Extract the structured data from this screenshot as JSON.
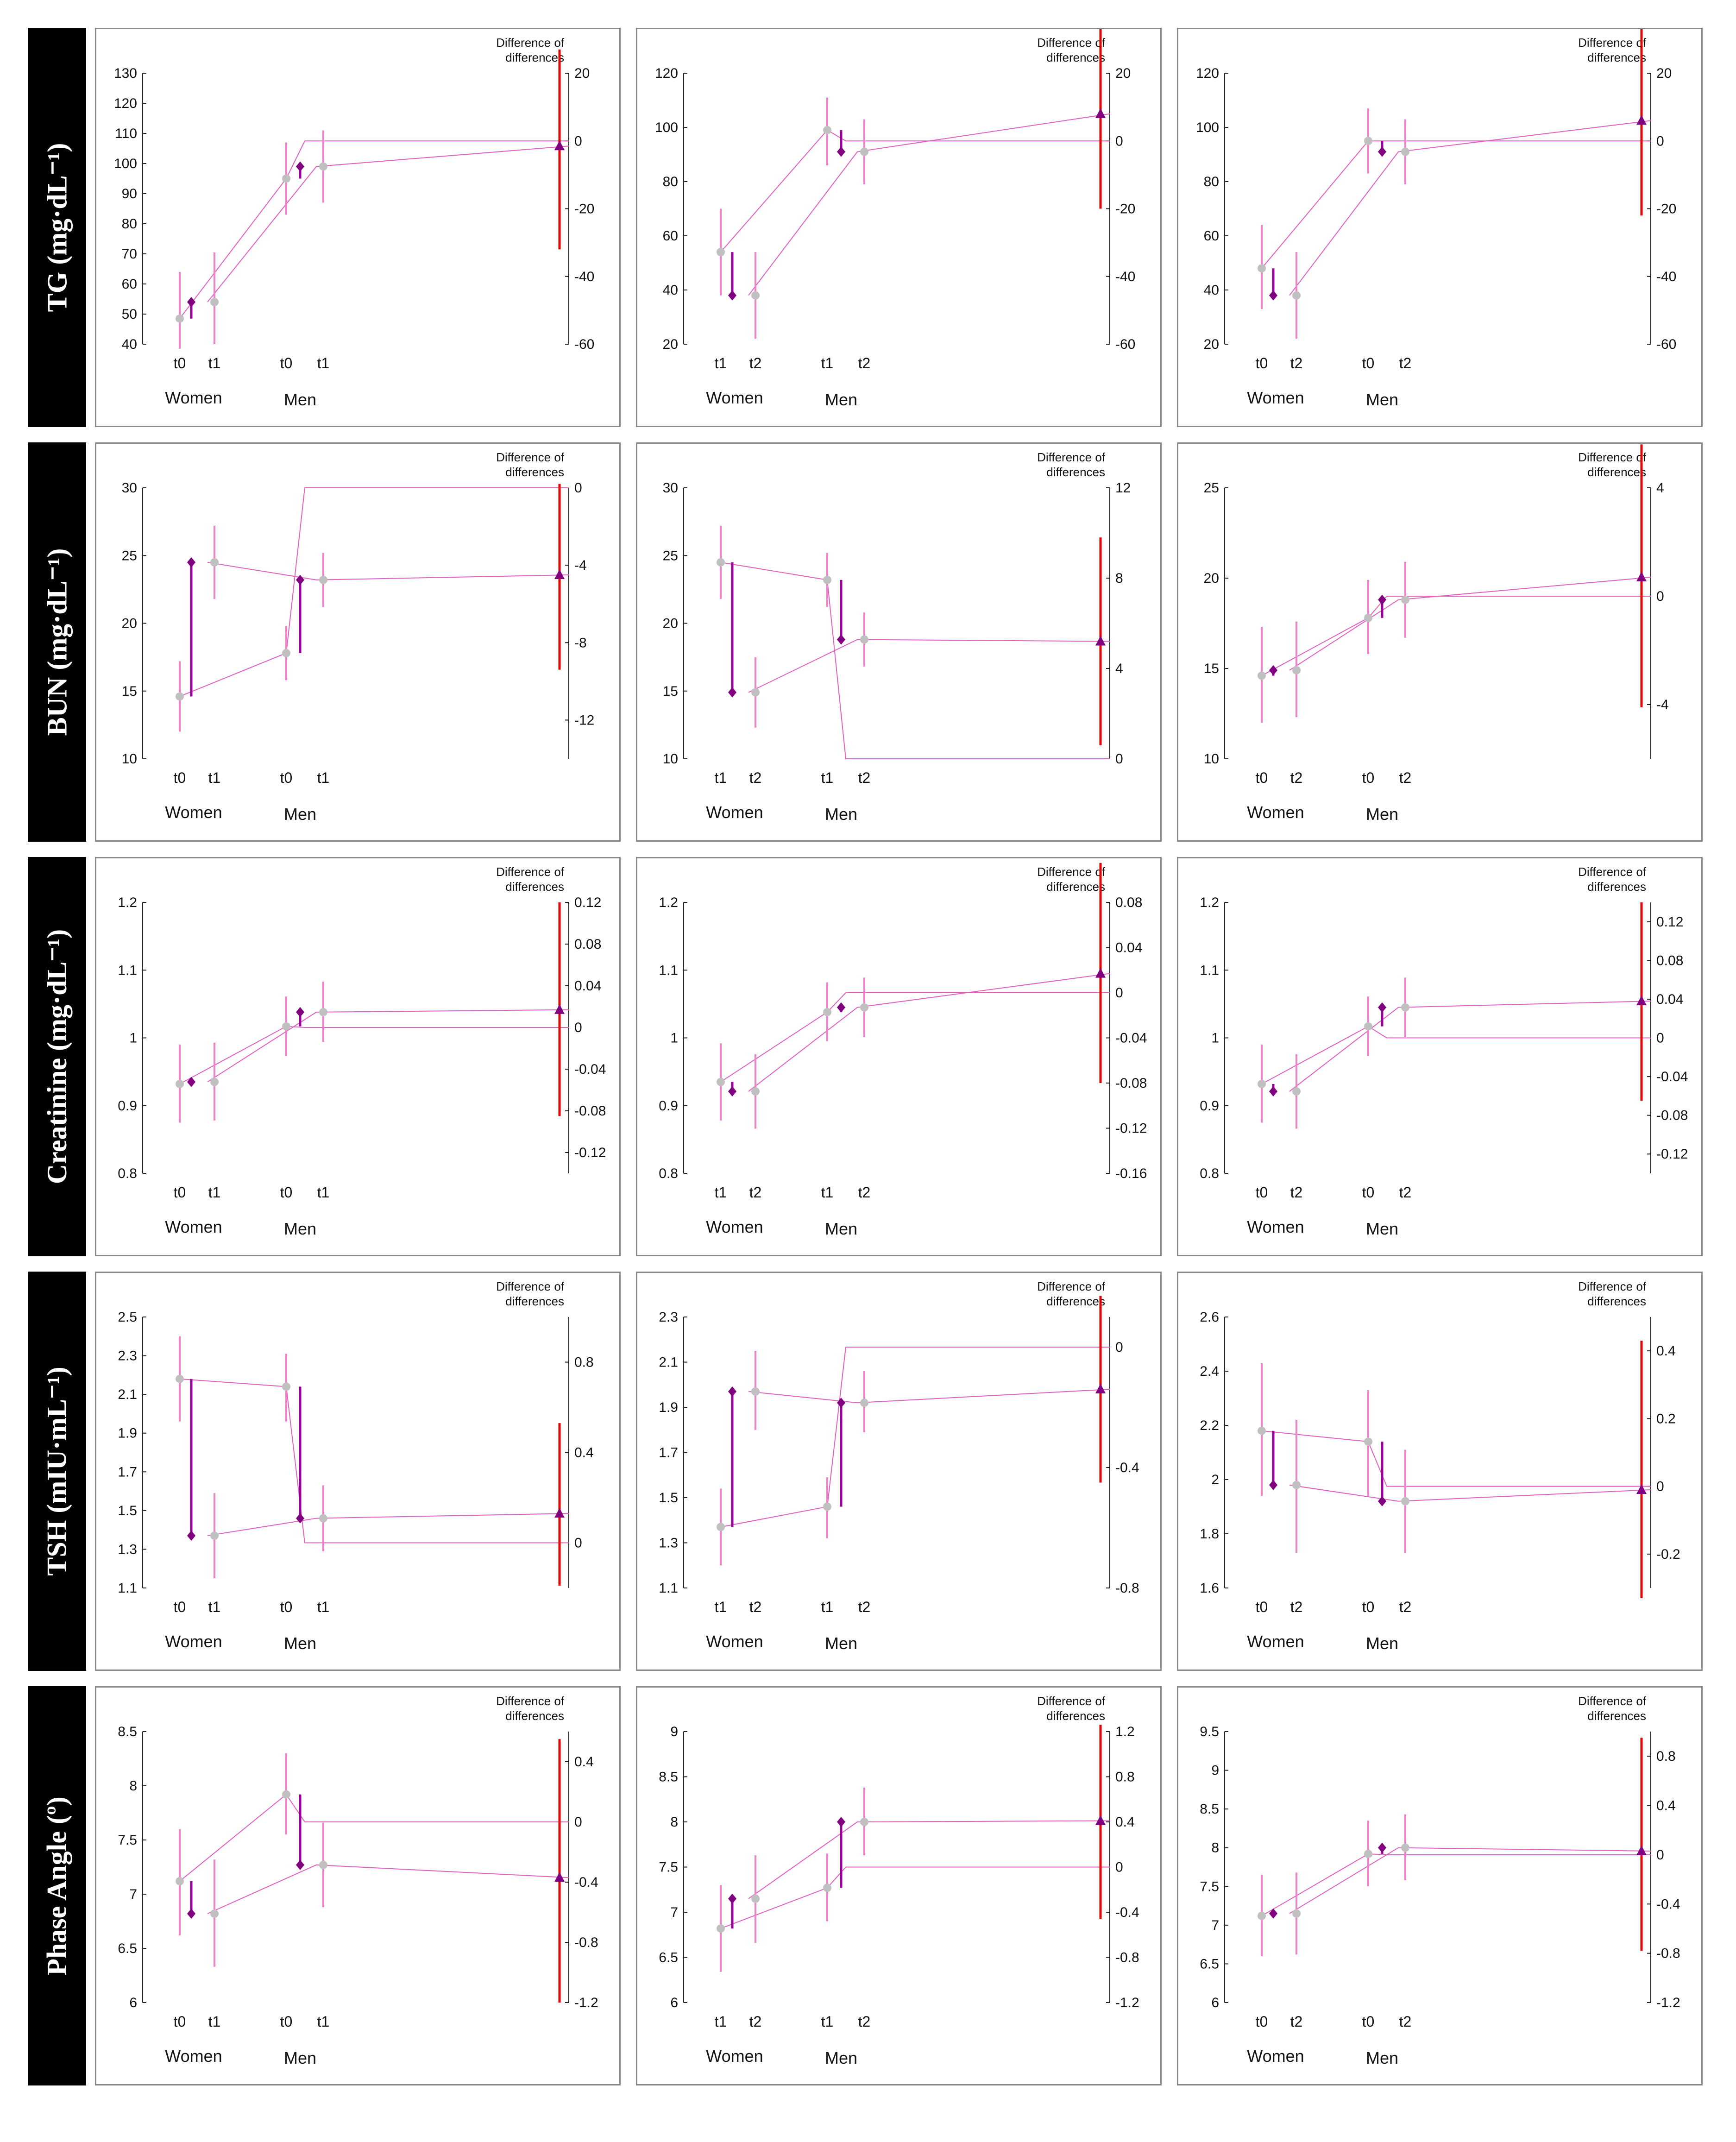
{
  "figure": {
    "diff_label_line1": "Difference of",
    "diff_label_line2": "differences",
    "group_women": "Women",
    "group_men": "Men"
  },
  "colors": {
    "point": "#c0c0c0",
    "ci_light": "#f080c8",
    "connector": "#e060c0",
    "change_bar": "#990099",
    "marker": "#800080",
    "diff_ci": "#e00000",
    "axis": "#222222"
  },
  "rows": [
    {
      "label": "TG (mg·dL⁻¹)"
    },
    {
      "label": "BUN (mg·dL⁻¹)"
    },
    {
      "label": "Creatinine (mg·dL⁻¹)"
    },
    {
      "label": "TSH (mIU·mL⁻¹)"
    },
    {
      "label": "Phase Angle (º)"
    }
  ],
  "chart_data": [
    {
      "type": "interaction-plot",
      "row": 0,
      "col": 0,
      "times": [
        "t0",
        "t1"
      ],
      "left_axis": {
        "min": 40,
        "max": 130,
        "ticks": [
          40,
          50,
          60,
          70,
          80,
          90,
          100,
          110,
          120,
          130
        ]
      },
      "right_axis": {
        "min": -60,
        "max": 20,
        "ticks": [
          -60,
          -40,
          -20,
          0,
          20
        ]
      },
      "women": {
        "a": {
          "mean": 48.5,
          "lo": 38.5,
          "hi": 64
        },
        "b": {
          "mean": 54,
          "lo": 40,
          "hi": 70.5
        }
      },
      "men": {
        "a": {
          "mean": 95,
          "lo": 83,
          "hi": 107
        },
        "b": {
          "mean": 99,
          "lo": 87,
          "hi": 111
        }
      },
      "difference": {
        "mean": -1.5,
        "lo": -32,
        "hi": 27
      }
    },
    {
      "type": "interaction-plot",
      "row": 0,
      "col": 1,
      "times": [
        "t1",
        "t2"
      ],
      "left_axis": {
        "min": 20,
        "max": 120,
        "ticks": [
          20,
          40,
          60,
          80,
          100,
          120
        ]
      },
      "right_axis": {
        "min": -60,
        "max": 20,
        "ticks": [
          -60,
          -40,
          -20,
          0,
          20
        ]
      },
      "women": {
        "a": {
          "mean": 54,
          "lo": 38,
          "hi": 70
        },
        "b": {
          "mean": 38,
          "lo": 22,
          "hi": 54
        }
      },
      "men": {
        "a": {
          "mean": 99,
          "lo": 86,
          "hi": 111
        },
        "b": {
          "mean": 91,
          "lo": 79,
          "hi": 103
        }
      },
      "difference": {
        "mean": 8,
        "lo": -20,
        "hi": 36
      }
    },
    {
      "type": "interaction-plot",
      "row": 0,
      "col": 2,
      "times": [
        "t0",
        "t2"
      ],
      "left_axis": {
        "min": 20,
        "max": 120,
        "ticks": [
          20,
          40,
          60,
          80,
          100,
          120
        ]
      },
      "right_axis": {
        "min": -60,
        "max": 20,
        "ticks": [
          -60,
          -40,
          -20,
          0,
          20
        ]
      },
      "women": {
        "a": {
          "mean": 48,
          "lo": 33,
          "hi": 64
        },
        "b": {
          "mean": 38,
          "lo": 22,
          "hi": 54
        }
      },
      "men": {
        "a": {
          "mean": 95,
          "lo": 83,
          "hi": 107
        },
        "b": {
          "mean": 91,
          "lo": 79,
          "hi": 103
        }
      },
      "difference": {
        "mean": 6,
        "lo": -22,
        "hi": 36
      }
    },
    {
      "type": "interaction-plot",
      "row": 1,
      "col": 0,
      "times": [
        "t0",
        "t1"
      ],
      "left_axis": {
        "min": 10,
        "max": 30,
        "ticks": [
          10,
          15,
          20,
          25,
          30
        ]
      },
      "right_axis": {
        "min": -14,
        "max": 0,
        "ticks": [
          -12,
          -8,
          -4,
          0
        ]
      },
      "women": {
        "a": {
          "mean": 14.6,
          "lo": 12,
          "hi": 17.2
        },
        "b": {
          "mean": 24.5,
          "lo": 21.8,
          "hi": 27.2
        }
      },
      "men": {
        "a": {
          "mean": 17.8,
          "lo": 15.8,
          "hi": 19.8
        },
        "b": {
          "mean": 23.2,
          "lo": 21.2,
          "hi": 25.2
        }
      },
      "difference": {
        "mean": -4.5,
        "lo": -9.4,
        "hi": 0.2
      }
    },
    {
      "type": "interaction-plot",
      "row": 1,
      "col": 1,
      "times": [
        "t1",
        "t2"
      ],
      "left_axis": {
        "min": 10,
        "max": 30,
        "ticks": [
          10,
          15,
          20,
          25,
          30
        ]
      },
      "right_axis": {
        "min": 0,
        "max": 12,
        "ticks": [
          0,
          4,
          8,
          12
        ]
      },
      "women": {
        "a": {
          "mean": 24.5,
          "lo": 21.8,
          "hi": 27.2
        },
        "b": {
          "mean": 14.9,
          "lo": 12.3,
          "hi": 17.5
        }
      },
      "men": {
        "a": {
          "mean": 23.2,
          "lo": 21.2,
          "hi": 25.2
        },
        "b": {
          "mean": 18.8,
          "lo": 16.8,
          "hi": 20.8
        }
      },
      "difference": {
        "mean": 5.2,
        "lo": 0.6,
        "hi": 9.8
      }
    },
    {
      "type": "interaction-plot",
      "row": 1,
      "col": 2,
      "times": [
        "t0",
        "t2"
      ],
      "left_axis": {
        "min": 10,
        "max": 25,
        "ticks": [
          10,
          15,
          20,
          25
        ]
      },
      "right_axis": {
        "min": -6,
        "max": 4,
        "ticks": [
          -4,
          0,
          4
        ]
      },
      "women": {
        "a": {
          "mean": 14.6,
          "lo": 12,
          "hi": 17.3
        },
        "b": {
          "mean": 14.9,
          "lo": 12.3,
          "hi": 17.6
        }
      },
      "men": {
        "a": {
          "mean": 17.8,
          "lo": 15.8,
          "hi": 19.9
        },
        "b": {
          "mean": 18.8,
          "lo": 16.7,
          "hi": 20.9
        }
      },
      "difference": {
        "mean": 0.7,
        "lo": -4.1,
        "hi": 5.6
      }
    },
    {
      "type": "interaction-plot",
      "row": 2,
      "col": 0,
      "times": [
        "t0",
        "t1"
      ],
      "left_axis": {
        "min": 0.8,
        "max": 1.2,
        "ticks": [
          0.8,
          0.9,
          1,
          1.1,
          1.2
        ]
      },
      "right_axis": {
        "min": -0.14,
        "max": 0.12,
        "ticks": [
          -0.12,
          -0.08,
          -0.04,
          0,
          0.04,
          0.08,
          0.12
        ]
      },
      "women": {
        "a": {
          "mean": 0.932,
          "lo": 0.875,
          "hi": 0.99
        },
        "b": {
          "mean": 0.935,
          "lo": 0.878,
          "hi": 0.993
        }
      },
      "men": {
        "a": {
          "mean": 1.017,
          "lo": 0.973,
          "hi": 1.061
        },
        "b": {
          "mean": 1.038,
          "lo": 0.994,
          "hi": 1.083
        }
      },
      "difference": {
        "mean": 0.017,
        "lo": -0.085,
        "hi": 0.12
      }
    },
    {
      "type": "interaction-plot",
      "row": 2,
      "col": 1,
      "times": [
        "t1",
        "t2"
      ],
      "left_axis": {
        "min": 0.8,
        "max": 1.2,
        "ticks": [
          0.8,
          0.9,
          1,
          1.1,
          1.2
        ]
      },
      "right_axis": {
        "min": -0.16,
        "max": 0.08,
        "ticks": [
          -0.16,
          -0.12,
          -0.08,
          -0.04,
          0,
          0.04,
          0.08
        ]
      },
      "women": {
        "a": {
          "mean": 0.935,
          "lo": 0.878,
          "hi": 0.992
        },
        "b": {
          "mean": 0.921,
          "lo": 0.866,
          "hi": 0.976
        }
      },
      "men": {
        "a": {
          "mean": 1.038,
          "lo": 0.995,
          "hi": 1.082
        },
        "b": {
          "mean": 1.045,
          "lo": 1.001,
          "hi": 1.089
        }
      },
      "difference": {
        "mean": 0.017,
        "lo": -0.08,
        "hi": 0.115
      }
    },
    {
      "type": "interaction-plot",
      "row": 2,
      "col": 2,
      "times": [
        "t0",
        "t2"
      ],
      "left_axis": {
        "min": 0.8,
        "max": 1.2,
        "ticks": [
          0.8,
          0.9,
          1,
          1.1,
          1.2
        ]
      },
      "right_axis": {
        "min": -0.14,
        "max": 0.14,
        "ticks": [
          -0.12,
          -0.08,
          -0.04,
          0,
          0.04,
          0.08,
          0.12
        ]
      },
      "women": {
        "a": {
          "mean": 0.932,
          "lo": 0.875,
          "hi": 0.99
        },
        "b": {
          "mean": 0.921,
          "lo": 0.866,
          "hi": 0.976
        }
      },
      "men": {
        "a": {
          "mean": 1.017,
          "lo": 0.973,
          "hi": 1.061
        },
        "b": {
          "mean": 1.045,
          "lo": 1.001,
          "hi": 1.089
        }
      },
      "difference": {
        "mean": 0.038,
        "lo": -0.065,
        "hi": 0.14
      }
    },
    {
      "type": "interaction-plot",
      "row": 3,
      "col": 0,
      "times": [
        "t0",
        "t1"
      ],
      "left_axis": {
        "min": 1.1,
        "max": 2.5,
        "ticks": [
          1.1,
          1.3,
          1.5,
          1.7,
          1.9,
          2.1,
          2.3,
          2.5
        ]
      },
      "right_axis": {
        "min": -0.2,
        "max": 1,
        "ticks": [
          0,
          0.4,
          0.8
        ]
      },
      "women": {
        "a": {
          "mean": 2.18,
          "lo": 1.96,
          "hi": 2.4
        },
        "b": {
          "mean": 1.37,
          "lo": 1.15,
          "hi": 1.59
        }
      },
      "men": {
        "a": {
          "mean": 2.14,
          "lo": 1.96,
          "hi": 2.31
        },
        "b": {
          "mean": 1.46,
          "lo": 1.29,
          "hi": 1.63
        }
      },
      "difference": {
        "mean": 0.13,
        "lo": -0.19,
        "hi": 0.53
      }
    },
    {
      "type": "interaction-plot",
      "row": 3,
      "col": 1,
      "times": [
        "t1",
        "t2"
      ],
      "left_axis": {
        "min": 1.1,
        "max": 2.3,
        "ticks": [
          1.1,
          1.3,
          1.5,
          1.7,
          1.9,
          2.1,
          2.3
        ]
      },
      "right_axis": {
        "min": -0.8,
        "max": 0.1,
        "ticks": [
          -0.8,
          -0.4,
          0
        ]
      },
      "women": {
        "a": {
          "mean": 1.37,
          "lo": 1.2,
          "hi": 1.54
        },
        "b": {
          "mean": 1.97,
          "lo": 1.8,
          "hi": 2.15
        }
      },
      "men": {
        "a": {
          "mean": 1.46,
          "lo": 1.32,
          "hi": 1.59
        },
        "b": {
          "mean": 1.92,
          "lo": 1.79,
          "hi": 2.06
        }
      },
      "difference": {
        "mean": -0.14,
        "lo": -0.45,
        "hi": 0.17
      }
    },
    {
      "type": "interaction-plot",
      "row": 3,
      "col": 2,
      "times": [
        "t0",
        "t2"
      ],
      "left_axis": {
        "min": 1.6,
        "max": 2.6,
        "ticks": [
          1.6,
          1.8,
          2,
          2.2,
          2.4,
          2.6
        ]
      },
      "right_axis": {
        "min": -0.3,
        "max": 0.5,
        "ticks": [
          -0.2,
          0,
          0.2,
          0.4
        ]
      },
      "women": {
        "a": {
          "mean": 2.18,
          "lo": 1.94,
          "hi": 2.43
        },
        "b": {
          "mean": 1.98,
          "lo": 1.73,
          "hi": 2.22
        }
      },
      "men": {
        "a": {
          "mean": 2.14,
          "lo": 1.94,
          "hi": 2.33
        },
        "b": {
          "mean": 1.92,
          "lo": 1.73,
          "hi": 2.11
        }
      },
      "difference": {
        "mean": -0.01,
        "lo": -0.33,
        "hi": 0.43
      }
    },
    {
      "type": "interaction-plot",
      "row": 4,
      "col": 0,
      "times": [
        "t0",
        "t1"
      ],
      "left_axis": {
        "min": 6,
        "max": 8.5,
        "ticks": [
          6,
          6.5,
          7,
          7.5,
          8,
          8.5
        ]
      },
      "right_axis": {
        "min": -1.2,
        "max": 0.6,
        "ticks": [
          -1.2,
          -0.8,
          -0.4,
          0,
          0.4
        ]
      },
      "women": {
        "a": {
          "mean": 7.12,
          "lo": 6.62,
          "hi": 7.6
        },
        "b": {
          "mean": 6.82,
          "lo": 6.33,
          "hi": 7.32
        }
      },
      "men": {
        "a": {
          "mean": 7.92,
          "lo": 7.55,
          "hi": 8.3
        },
        "b": {
          "mean": 7.27,
          "lo": 6.88,
          "hi": 7.66
        }
      },
      "difference": {
        "mean": -0.37,
        "lo": -1.2,
        "hi": 0.55
      }
    },
    {
      "type": "interaction-plot",
      "row": 4,
      "col": 1,
      "times": [
        "t1",
        "t2"
      ],
      "left_axis": {
        "min": 6,
        "max": 9,
        "ticks": [
          6,
          6.5,
          7,
          7.5,
          8,
          8.5,
          9
        ]
      },
      "right_axis": {
        "min": -1.2,
        "max": 1.2,
        "ticks": [
          -1.2,
          -0.8,
          -0.4,
          0,
          0.4,
          0.8,
          1.2
        ]
      },
      "women": {
        "a": {
          "mean": 6.82,
          "lo": 6.34,
          "hi": 7.3
        },
        "b": {
          "mean": 7.15,
          "lo": 6.66,
          "hi": 7.63
        }
      },
      "men": {
        "a": {
          "mean": 7.27,
          "lo": 6.9,
          "hi": 7.65
        },
        "b": {
          "mean": 8,
          "lo": 7.63,
          "hi": 8.38
        }
      },
      "difference": {
        "mean": 0.41,
        "lo": -0.46,
        "hi": 1.26
      }
    },
    {
      "type": "interaction-plot",
      "row": 4,
      "col": 2,
      "times": [
        "t0",
        "t2"
      ],
      "left_axis": {
        "min": 6,
        "max": 9.5,
        "ticks": [
          6,
          6.5,
          7,
          7.5,
          8,
          8.5,
          9,
          9.5
        ]
      },
      "right_axis": {
        "min": -1.2,
        "max": 1,
        "ticks": [
          -1.2,
          -0.8,
          -0.4,
          0,
          0.4,
          0.8
        ]
      },
      "women": {
        "a": {
          "mean": 7.12,
          "lo": 6.6,
          "hi": 7.65
        },
        "b": {
          "mean": 7.15,
          "lo": 6.62,
          "hi": 7.68
        }
      },
      "men": {
        "a": {
          "mean": 7.92,
          "lo": 7.5,
          "hi": 8.35
        },
        "b": {
          "mean": 8,
          "lo": 7.58,
          "hi": 8.43
        }
      },
      "difference": {
        "mean": 0.03,
        "lo": -0.78,
        "hi": 0.95
      }
    }
  ]
}
